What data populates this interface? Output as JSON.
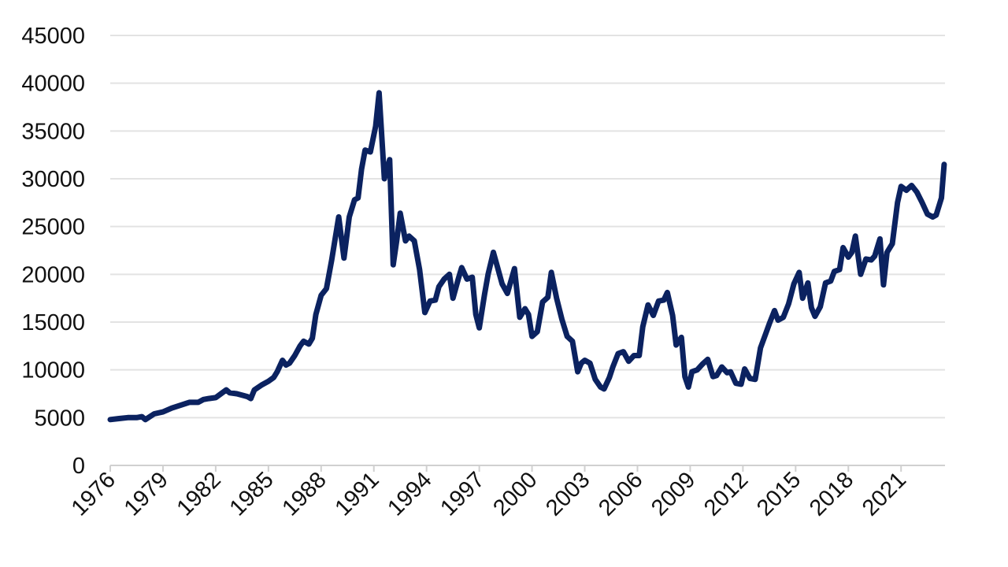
{
  "chart_data": {
    "type": "line",
    "title": "",
    "xlabel": "",
    "ylabel": "",
    "xlim": [
      1976,
      2023.5
    ],
    "ylim": [
      0,
      45000
    ],
    "grid": true,
    "legend": "none",
    "x_ticks": [
      "1976",
      "1979",
      "1982",
      "1985",
      "1988",
      "1991",
      "1994",
      "1997",
      "2000",
      "2003",
      "2006",
      "2009",
      "2012",
      "2015",
      "2018",
      "2021"
    ],
    "y_ticks": [
      "0",
      "5000",
      "10000",
      "15000",
      "20000",
      "25000",
      "30000",
      "35000",
      "40000",
      "45000"
    ],
    "series": [
      {
        "color": "#0b2260",
        "x": [
          1976.0,
          1976.5,
          1977.0,
          1977.5,
          1977.8,
          1978.0,
          1978.5,
          1979.0,
          1979.5,
          1980.0,
          1980.5,
          1981.0,
          1981.3,
          1981.6,
          1982.0,
          1982.3,
          1982.6,
          1982.8,
          1983.2,
          1983.6,
          1983.8,
          1984.0,
          1984.2,
          1984.6,
          1985.0,
          1985.3,
          1985.5,
          1985.8,
          1986.0,
          1986.2,
          1986.5,
          1986.8,
          1987.0,
          1987.3,
          1987.5,
          1987.7,
          1988.0,
          1988.3,
          1988.6,
          1989.0,
          1989.3,
          1989.6,
          1989.9,
          1990.1,
          1990.3,
          1990.5,
          1990.8,
          1991.1,
          1991.3,
          1991.6,
          1991.9,
          1992.1,
          1992.3,
          1992.5,
          1992.8,
          1993.0,
          1993.3,
          1993.6,
          1993.9,
          1994.2,
          1994.5,
          1994.7,
          1995.0,
          1995.3,
          1995.5,
          1995.8,
          1996.0,
          1996.3,
          1996.6,
          1996.8,
          1997.0,
          1997.3,
          1997.5,
          1997.8,
          1998.0,
          1998.3,
          1998.6,
          1999.0,
          1999.3,
          1999.6,
          1999.8,
          2000.0,
          2000.3,
          2000.6,
          2000.9,
          2001.1,
          2001.4,
          2001.7,
          2002.0,
          2002.3,
          2002.6,
          2002.8,
          2003.0,
          2003.3,
          2003.6,
          2003.9,
          2004.1,
          2004.4,
          2004.6,
          2004.9,
          2005.2,
          2005.5,
          2005.8,
          2006.1,
          2006.3,
          2006.6,
          2006.9,
          2007.2,
          2007.5,
          2007.7,
          2008.0,
          2008.2,
          2008.5,
          2008.7,
          2008.9,
          2009.1,
          2009.4,
          2009.7,
          2010.0,
          2010.3,
          2010.5,
          2010.8,
          2011.1,
          2011.3,
          2011.6,
          2011.9,
          2012.1,
          2012.4,
          2012.7,
          2013.0,
          2013.3,
          2013.5,
          2013.8,
          2014.0,
          2014.3,
          2014.6,
          2014.9,
          2015.2,
          2015.4,
          2015.7,
          2015.9,
          2016.1,
          2016.4,
          2016.7,
          2017.0,
          2017.2,
          2017.5,
          2017.7,
          2018.0,
          2018.2,
          2018.4,
          2018.7,
          2019.0,
          2019.3,
          2019.5,
          2019.8,
          2020.0,
          2020.2,
          2020.5,
          2020.8,
          2021.0,
          2021.3,
          2021.6,
          2021.9,
          2022.2,
          2022.5,
          2022.8,
          2023.0,
          2023.3,
          2023.45
        ],
        "y": [
          4800,
          4900,
          5000,
          5000,
          5100,
          4800,
          5400,
          5600,
          6000,
          6300,
          6600,
          6600,
          6900,
          7000,
          7100,
          7500,
          7900,
          7600,
          7500,
          7300,
          7200,
          7000,
          7900,
          8400,
          8800,
          9200,
          9800,
          11000,
          10500,
          10700,
          11500,
          12500,
          13000,
          12700,
          13300,
          15800,
          17800,
          18500,
          21500,
          26000,
          21700,
          26000,
          27800,
          28000,
          31000,
          33000,
          32800,
          35500,
          39000,
          30000,
          32000,
          21000,
          23500,
          26400,
          23500,
          24000,
          23500,
          20500,
          16000,
          17200,
          17300,
          18700,
          19500,
          20000,
          17500,
          19500,
          20700,
          19500,
          19700,
          15800,
          14400,
          17900,
          20000,
          22300,
          21000,
          19000,
          18000,
          20600,
          15500,
          16400,
          15800,
          13500,
          14000,
          17100,
          17600,
          20200,
          17500,
          15300,
          13500,
          13000,
          9800,
          10700,
          11000,
          10700,
          9000,
          8200,
          8000,
          9200,
          10300,
          11700,
          11900,
          10900,
          11500,
          11500,
          14500,
          16800,
          15700,
          17200,
          17300,
          18100,
          15700,
          12600,
          13400,
          9300,
          8200,
          9800,
          10000,
          10600,
          11100,
          9300,
          9400,
          10300,
          9700,
          9800,
          8600,
          8500,
          10100,
          9100,
          9000,
          12300,
          13800,
          14800,
          16200,
          15200,
          15500,
          16900,
          19000,
          20200,
          17500,
          19100,
          16500,
          15600,
          16600,
          19100,
          19300,
          20300,
          20500,
          22800,
          21800,
          22300,
          24000,
          20000,
          21600,
          21500,
          21900,
          23700,
          18900,
          22300,
          23200,
          27500,
          29200,
          28800,
          29300,
          28600,
          27500,
          26300,
          26000,
          26200,
          28000,
          31500
        ]
      }
    ]
  }
}
